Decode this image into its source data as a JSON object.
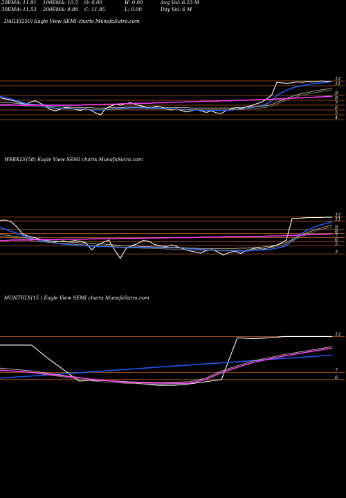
{
  "header": {
    "ema20": "20EMA: 11.91",
    "ema100": "100EMA: 10.5",
    "open": "O: 0.00",
    "high": "H: 0.00",
    "avg_vol": "Avg Vol: 6.23 M",
    "ema30": "30EMA: 11.53",
    "ema200": "200EMA: 9.88",
    "close": "C: 11.95",
    "low": "L: 0.00",
    "day_vol": "Day Vol: 6  M"
  },
  "colors": {
    "price": "#ffffff",
    "ema_short": "#1f5fff",
    "ema_long": "#ff40ff",
    "ema_mid": "#d8d0b0",
    "level": "#b85a20",
    "background": "#000000"
  },
  "chart_data": [
    {
      "type": "line",
      "title": "DAILY(250) Eagle  View  SEMI charts MunafaSutra.com",
      "ylim": [
        3,
        13
      ],
      "yticks": [
        "12",
        "11",
        "9",
        "8",
        "7",
        "6",
        "5",
        "4"
      ],
      "levels": [
        12,
        11,
        9,
        8,
        7,
        6,
        5,
        4
      ],
      "series": [
        {
          "role": "price",
          "values": [
            8.5,
            8.3,
            8.1,
            7.8,
            7.5,
            7.2,
            7.6,
            7.9,
            7.4,
            6.8,
            6.1,
            5.8,
            6.2,
            6.5,
            6.4,
            6.1,
            5.9,
            6.3,
            6.0,
            5.4,
            5.0,
            6.3,
            6.8,
            7.2,
            7.0,
            7.3,
            7.5,
            7.1,
            6.9,
            6.6,
            6.4,
            6.8,
            6.6,
            6.2,
            6.0,
            6.3,
            5.9,
            5.6,
            5.8,
            6.1,
            5.8,
            5.5,
            5.8,
            5.4,
            5.3,
            5.9,
            6.2,
            6.5,
            6.3,
            6.7,
            6.9,
            7.3,
            7.6,
            8.3,
            9.1,
            11.7,
            11.6,
            11.5,
            11.6,
            11.8,
            11.7,
            11.9,
            11.8,
            11.9,
            12.0,
            11.9,
            11.95
          ]
        },
        {
          "role": "ema_short",
          "values": [
            8.8,
            8.6,
            8.3,
            8.0,
            7.7,
            7.4,
            7.2,
            7.1,
            7.0,
            6.8,
            6.6,
            6.4,
            6.3,
            6.3,
            6.3,
            6.2,
            6.2,
            6.2,
            6.1,
            6.0,
            6.0,
            6.1,
            6.2,
            6.3,
            6.4,
            6.4,
            6.5,
            6.5,
            6.5,
            6.4,
            6.4,
            6.4,
            6.3,
            6.3,
            6.2,
            6.2,
            6.1,
            6.1,
            6.0,
            6.0,
            6.0,
            5.9,
            5.9,
            5.9,
            5.9,
            5.9,
            6.0,
            6.1,
            6.2,
            6.3,
            6.5,
            6.7,
            6.9,
            7.3,
            7.9,
            9.0,
            9.6,
            10.1,
            10.5,
            10.8,
            11.0,
            11.2,
            11.4,
            11.5,
            11.6,
            11.7,
            11.9
          ]
        },
        {
          "role": "ema_mid",
          "values": [
            7.6,
            7.5,
            7.5,
            7.4,
            7.3,
            7.2,
            7.1,
            7.1,
            7.0,
            6.9,
            6.8,
            6.7,
            6.6,
            6.6,
            6.6,
            6.5,
            6.5,
            6.5,
            6.5,
            6.4,
            6.4,
            6.4,
            6.5,
            6.5,
            6.5,
            6.6,
            6.6,
            6.6,
            6.6,
            6.6,
            6.6,
            6.6,
            6.6,
            6.5,
            6.5,
            6.5,
            6.5,
            6.5,
            6.4,
            6.4,
            6.4,
            6.4,
            6.4,
            6.4,
            6.4,
            6.4,
            6.4,
            6.5,
            6.5,
            6.6,
            6.6,
            6.7,
            6.8,
            6.9,
            7.1,
            7.6,
            8.0,
            8.4,
            8.8,
            9.1,
            9.4,
            9.6,
            9.8,
            10.0,
            10.2,
            10.3,
            10.5
          ]
        },
        {
          "role": "ema_long",
          "values": [
            7.0,
            7.0,
            7.0,
            7.0,
            7.0,
            7.0,
            7.0,
            7.0,
            7.0,
            7.0,
            7.0,
            7.0,
            7.0,
            7.0,
            7.0,
            7.0,
            7.0,
            7.1,
            7.1,
            7.1,
            7.1,
            7.2,
            7.2,
            7.2,
            7.3,
            7.3,
            7.3,
            7.4,
            7.4,
            7.4,
            7.4,
            7.5,
            7.5,
            7.5,
            7.6,
            7.6,
            7.6,
            7.7,
            7.7,
            7.7,
            7.8,
            7.8,
            7.8,
            7.8,
            7.9,
            7.9,
            7.9,
            8.0,
            8.0,
            8.0,
            8.1,
            8.1,
            8.1,
            8.2,
            8.2,
            8.3,
            8.3,
            8.4,
            8.4,
            8.5,
            8.5,
            8.6,
            8.6,
            8.7,
            8.7,
            8.8,
            8.8
          ]
        }
      ]
    },
    {
      "type": "line",
      "title": "WEEKLY(58) Eagle  View  SEMI charts MunafaSutra.com",
      "ylim": [
        2,
        13
      ],
      "yticks": [
        "12",
        "11",
        "9",
        "8",
        "7",
        "6",
        "5",
        "3"
      ],
      "levels": [
        12,
        11,
        9,
        8,
        7,
        6,
        5,
        3
      ],
      "series": [
        {
          "role": "price",
          "values": [
            11.2,
            11.3,
            10.8,
            9.5,
            7.8,
            7.3,
            7.0,
            6.6,
            6.3,
            5.8,
            6.0,
            6.2,
            5.9,
            6.3,
            6.1,
            5.7,
            4.0,
            5.2,
            5.8,
            6.4,
            4.0,
            1.9,
            4.3,
            5.0,
            5.5,
            6.3,
            6.1,
            5.3,
            5.0,
            4.8,
            5.2,
            4.7,
            4.2,
            3.8,
            3.5,
            3.2,
            3.8,
            4.1,
            3.5,
            2.7,
            3.3,
            3.7,
            3.1,
            3.8,
            4.2,
            4.5,
            4.1,
            4.6,
            5.0,
            5.6,
            6.4,
            11.7,
            11.7,
            11.8,
            11.9,
            11.9,
            11.9,
            12.0,
            11.95
          ]
        },
        {
          "role": "ema_short",
          "values": [
            9.5,
            9.0,
            8.5,
            8.0,
            7.5,
            7.0,
            6.6,
            6.3,
            6.0,
            5.8,
            5.6,
            5.4,
            5.3,
            5.2,
            5.1,
            5.0,
            4.9,
            4.8,
            4.8,
            4.8,
            4.7,
            4.6,
            4.6,
            4.6,
            4.6,
            4.6,
            4.6,
            4.6,
            4.6,
            4.5,
            4.5,
            4.5,
            4.4,
            4.3,
            4.2,
            4.1,
            4.0,
            4.0,
            3.9,
            3.8,
            3.8,
            3.8,
            3.7,
            3.7,
            3.8,
            3.9,
            4.0,
            4.1,
            4.3,
            4.6,
            5.0,
            6.3,
            7.4,
            8.3,
            9.0,
            9.6,
            10.1,
            10.5,
            10.9
          ]
        },
        {
          "role": "ema_mid",
          "values": [
            7.8,
            7.6,
            7.4,
            7.2,
            7.0,
            6.8,
            6.6,
            6.5,
            6.3,
            6.2,
            6.1,
            6.0,
            5.9,
            5.8,
            5.7,
            5.6,
            5.5,
            5.4,
            5.4,
            5.3,
            5.2,
            5.1,
            5.0,
            4.9,
            4.9,
            4.8,
            4.8,
            4.7,
            4.7,
            4.6,
            4.6,
            4.5,
            4.5,
            4.4,
            4.4,
            4.3,
            4.3,
            4.3,
            4.3,
            4.3,
            4.3,
            4.3,
            4.4,
            4.4,
            4.5,
            4.6,
            4.7,
            4.9,
            5.1,
            5.4,
            5.8,
            6.5,
            7.2,
            7.8,
            8.4,
            8.9,
            9.3,
            9.7,
            10.1
          ]
        },
        {
          "role": "ema_long",
          "values": [
            6.3,
            6.3,
            6.4,
            6.4,
            6.4,
            6.4,
            6.5,
            6.5,
            6.5,
            6.5,
            6.5,
            6.6,
            6.6,
            6.6,
            6.6,
            6.6,
            6.7,
            6.7,
            6.7,
            6.7,
            6.7,
            6.8,
            6.8,
            6.8,
            6.8,
            6.8,
            6.9,
            6.9,
            6.9,
            6.9,
            7.0,
            7.0,
            7.0,
            7.0,
            7.0,
            7.1,
            7.1,
            7.1,
            7.1,
            7.2,
            7.2,
            7.2,
            7.2,
            7.3,
            7.3,
            7.3,
            7.3,
            7.4,
            7.4,
            7.4,
            7.5,
            7.5,
            7.6,
            7.6,
            7.7,
            7.7,
            7.8,
            7.8,
            7.9
          ]
        }
      ]
    },
    {
      "type": "line",
      "title": "MONTHLY(15                       ) Eagle  View  SEMI charts MunafaSutra.com",
      "ylim": [
        3,
        13
      ],
      "yticks": [
        "12",
        "7",
        "6"
      ],
      "levels": [
        12,
        7,
        6
      ],
      "series": [
        {
          "role": "price",
          "x": [
            0,
            2,
            3,
            5,
            6,
            8,
            9,
            10,
            11,
            12,
            14,
            15,
            16,
            17,
            18,
            19,
            20,
            21
          ],
          "values": [
            10.8,
            10.8,
            9.0,
            5.8,
            5.9,
            5.7,
            5.4,
            5.2,
            5.2,
            5.4,
            6.0,
            11.8,
            11.7,
            11.8,
            12.0,
            12.0,
            12.0,
            12.0
          ]
        },
        {
          "role": "ema_short",
          "x": [
            0,
            21
          ],
          "values": [
            6.2,
            9.4
          ]
        },
        {
          "role": "ema_mid",
          "x": [
            0,
            2,
            4,
            6,
            8,
            10,
            12,
            13,
            14,
            16,
            18,
            21
          ],
          "values": [
            7.6,
            7.2,
            6.6,
            6.0,
            5.7,
            5.6,
            5.7,
            6.2,
            7.2,
            8.6,
            9.5,
            10.6
          ]
        },
        {
          "role": "ema_long",
          "x": [
            0,
            2,
            4,
            6,
            8,
            10,
            12,
            13,
            14,
            16,
            18,
            21
          ],
          "values": [
            7.3,
            7.0,
            6.5,
            6.0,
            5.6,
            5.5,
            5.5,
            6.0,
            7.0,
            8.4,
            9.3,
            10.4
          ]
        }
      ]
    }
  ]
}
